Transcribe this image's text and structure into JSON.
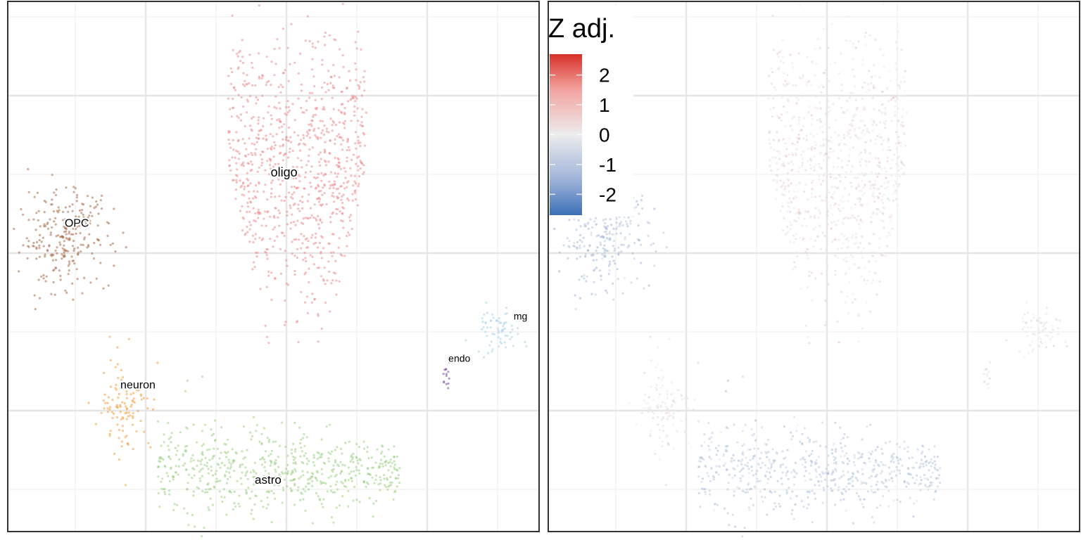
{
  "chart_data": [
    {
      "type": "scatter",
      "panel": "left",
      "title": "",
      "xlabel": "",
      "ylabel": "",
      "grid": true,
      "xlim": [
        0,
        10
      ],
      "ylim": [
        0,
        10
      ],
      "colors": {
        "oligo": "#ef8a8a",
        "OPC": "#a86a48",
        "neuron": "#f89a3c",
        "astro": "#9ccf84",
        "mg": "#a9d2e8",
        "endo": "#7b4ca8"
      },
      "clusters": [
        {
          "name": "oligo",
          "x": 5.45,
          "y": 6.9,
          "sx": 0.95,
          "sy": 2.1,
          "n": 900
        },
        {
          "name": "OPC",
          "x": 1.05,
          "y": 5.55,
          "sx": 0.45,
          "sy": 0.45,
          "n": 260
        },
        {
          "name": "neuron",
          "x": 2.2,
          "y": 2.4,
          "sx": 0.25,
          "sy": 0.45,
          "n": 110
        },
        {
          "name": "astro",
          "x": 5.6,
          "y": 1.15,
          "sx": 1.3,
          "sy": 0.55,
          "n": 620
        },
        {
          "name": "mg",
          "x": 9.25,
          "y": 3.8,
          "sx": 0.22,
          "sy": 0.22,
          "n": 70
        },
        {
          "name": "endo",
          "x": 8.27,
          "y": 2.95,
          "sx": 0.05,
          "sy": 0.09,
          "n": 14
        }
      ],
      "labels": [
        {
          "text": "oligo",
          "x": 5.2,
          "y": 6.7,
          "size": 18
        },
        {
          "text": "OPC",
          "x": 1.3,
          "y": 5.75,
          "size": 16
        },
        {
          "text": "neuron",
          "x": 2.45,
          "y": 2.7,
          "size": 16
        },
        {
          "text": "astro",
          "x": 4.9,
          "y": 0.9,
          "size": 17
        },
        {
          "text": "mg",
          "x": 9.65,
          "y": 4.0,
          "size": 14
        },
        {
          "text": "endo",
          "x": 8.5,
          "y": 3.2,
          "size": 14
        }
      ]
    },
    {
      "type": "scatter",
      "panel": "right",
      "title": "",
      "xlabel": "",
      "ylabel": "",
      "grid": true,
      "xlim": [
        0,
        10
      ],
      "ylim": [
        0,
        10
      ],
      "color_scale": {
        "name": "Z adj.",
        "low": "#3b6fb6",
        "mid": "#ececec",
        "high": "#d73027",
        "domain": [
          -2.7,
          2.7
        ],
        "ticks": [
          2,
          1,
          0,
          -1,
          -2
        ],
        "tick_labels": [
          "2",
          "1",
          "0",
          "-1",
          "-2"
        ]
      },
      "clusters": [
        {
          "name": "oligo",
          "x": 5.45,
          "y": 6.9,
          "sx": 0.95,
          "sy": 2.1,
          "n": 900,
          "z": 0.15
        },
        {
          "name": "OPC",
          "x": 1.05,
          "y": 5.55,
          "sx": 0.45,
          "sy": 0.45,
          "n": 260,
          "z": -1.0
        },
        {
          "name": "neuron",
          "x": 2.2,
          "y": 2.4,
          "sx": 0.25,
          "sy": 0.45,
          "n": 110,
          "z": 0.0
        },
        {
          "name": "astro",
          "x": 5.6,
          "y": 1.15,
          "sx": 1.3,
          "sy": 0.55,
          "n": 620,
          "z": -0.8
        },
        {
          "name": "mg",
          "x": 9.25,
          "y": 3.8,
          "sx": 0.22,
          "sy": 0.22,
          "n": 70,
          "z": 0.0
        },
        {
          "name": "endo",
          "x": 8.27,
          "y": 2.95,
          "sx": 0.05,
          "sy": 0.09,
          "n": 14,
          "z": 0.0
        }
      ]
    }
  ]
}
